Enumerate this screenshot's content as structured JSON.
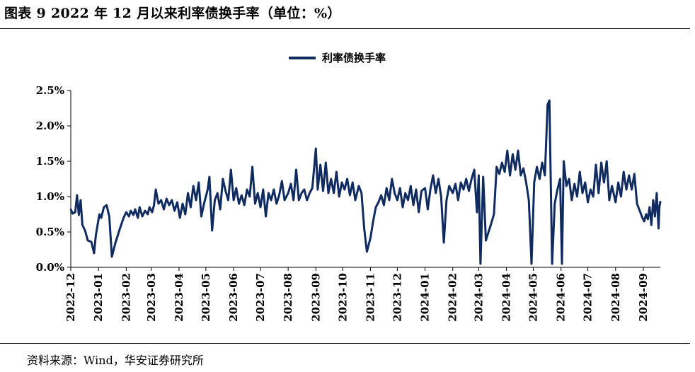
{
  "title": "图表 9 2022 年 12 月以来利率债换手率（单位：%）",
  "source": "资料来源：Wind，华安证券研究所",
  "colors": {
    "series": "#0f2b60",
    "axis": "#000000"
  },
  "chart_data": {
    "type": "line",
    "title": "",
    "xlabel": "",
    "ylabel": "",
    "ylim": [
      0,
      2.5
    ],
    "y_ticks": [
      0,
      0.5,
      1.0,
      1.5,
      2.0,
      2.5
    ],
    "y_tick_labels": [
      "0.0%",
      "0.5%",
      "1.0%",
      "1.5%",
      "2.0%",
      "2.5%"
    ],
    "x_range": [
      "2022-12-01",
      "2024-09-20"
    ],
    "x_tick_labels": [
      "2022-12",
      "2023-01",
      "2023-02",
      "2023-03",
      "2023-04",
      "2023-05",
      "2023-06",
      "2023-07",
      "2023-08",
      "2023-09",
      "2023-10",
      "2023-11",
      "2023-12",
      "2024-01",
      "2024-02",
      "2024-03",
      "2024-04",
      "2024-05",
      "2024-06",
      "2024-07",
      "2024-08",
      "2024-09"
    ],
    "legend": {
      "position": "top-center"
    },
    "grid": false,
    "series": [
      {
        "name": "利率债换手率",
        "points": [
          [
            "2022-12-01",
            0.82
          ],
          [
            "2022-12-03",
            0.76
          ],
          [
            "2022-12-06",
            0.78
          ],
          [
            "2022-12-08",
            1.02
          ],
          [
            "2022-12-10",
            0.74
          ],
          [
            "2022-12-12",
            0.95
          ],
          [
            "2022-12-14",
            0.6
          ],
          [
            "2022-12-17",
            0.52
          ],
          [
            "2022-12-20",
            0.38
          ],
          [
            "2022-12-24",
            0.36
          ],
          [
            "2022-12-27",
            0.2
          ],
          [
            "2022-12-29",
            0.45
          ],
          [
            "2023-01-02",
            0.75
          ],
          [
            "2023-01-04",
            0.7
          ],
          [
            "2023-01-07",
            0.85
          ],
          [
            "2023-01-10",
            0.88
          ],
          [
            "2023-01-13",
            0.72
          ],
          [
            "2023-01-16",
            0.15
          ],
          [
            "2023-01-20",
            0.35
          ],
          [
            "2023-01-25",
            0.55
          ],
          [
            "2023-01-29",
            0.7
          ],
          [
            "2023-02-01",
            0.78
          ],
          [
            "2023-02-04",
            0.72
          ],
          [
            "2023-02-06",
            0.8
          ],
          [
            "2023-02-09",
            0.74
          ],
          [
            "2023-02-11",
            0.82
          ],
          [
            "2023-02-14",
            0.7
          ],
          [
            "2023-02-16",
            0.85
          ],
          [
            "2023-02-19",
            0.72
          ],
          [
            "2023-02-22",
            0.8
          ],
          [
            "2023-02-25",
            0.75
          ],
          [
            "2023-02-27",
            0.85
          ],
          [
            "2023-03-02",
            0.78
          ],
          [
            "2023-03-04",
            0.88
          ],
          [
            "2023-03-06",
            1.1
          ],
          [
            "2023-03-09",
            0.9
          ],
          [
            "2023-03-12",
            0.95
          ],
          [
            "2023-03-15",
            0.82
          ],
          [
            "2023-03-18",
            0.97
          ],
          [
            "2023-03-21",
            0.88
          ],
          [
            "2023-03-24",
            0.95
          ],
          [
            "2023-03-27",
            0.8
          ],
          [
            "2023-03-30",
            0.92
          ],
          [
            "2023-04-02",
            0.7
          ],
          [
            "2023-04-05",
            0.9
          ],
          [
            "2023-04-08",
            0.75
          ],
          [
            "2023-04-11",
            1.05
          ],
          [
            "2023-04-14",
            0.85
          ],
          [
            "2023-04-17",
            1.15
          ],
          [
            "2023-04-20",
            0.95
          ],
          [
            "2023-04-23",
            1.2
          ],
          [
            "2023-04-26",
            0.72
          ],
          [
            "2023-04-29",
            0.9
          ],
          [
            "2023-05-03",
            1.1
          ],
          [
            "2023-05-05",
            1.28
          ],
          [
            "2023-05-08",
            0.52
          ],
          [
            "2023-05-11",
            0.95
          ],
          [
            "2023-05-14",
            1.05
          ],
          [
            "2023-05-17",
            0.82
          ],
          [
            "2023-05-20",
            1.25
          ],
          [
            "2023-05-23",
            1.08
          ],
          [
            "2023-05-26",
            0.95
          ],
          [
            "2023-05-29",
            1.38
          ],
          [
            "2023-06-01",
            0.95
          ],
          [
            "2023-06-04",
            1.12
          ],
          [
            "2023-06-07",
            0.9
          ],
          [
            "2023-06-10",
            1.02
          ],
          [
            "2023-06-13",
            0.88
          ],
          [
            "2023-06-16",
            1.1
          ],
          [
            "2023-06-19",
            1.0
          ],
          [
            "2023-06-22",
            1.42
          ],
          [
            "2023-06-25",
            0.9
          ],
          [
            "2023-06-28",
            1.05
          ],
          [
            "2023-07-01",
            0.85
          ],
          [
            "2023-07-04",
            1.1
          ],
          [
            "2023-07-07",
            0.72
          ],
          [
            "2023-07-10",
            1.05
          ],
          [
            "2023-07-13",
            0.95
          ],
          [
            "2023-07-16",
            1.1
          ],
          [
            "2023-07-19",
            0.9
          ],
          [
            "2023-07-22",
            1.02
          ],
          [
            "2023-07-25",
            1.22
          ],
          [
            "2023-07-28",
            0.95
          ],
          [
            "2023-08-01",
            1.05
          ],
          [
            "2023-08-04",
            1.18
          ],
          [
            "2023-08-07",
            0.95
          ],
          [
            "2023-08-10",
            1.38
          ],
          [
            "2023-08-13",
            0.95
          ],
          [
            "2023-08-16",
            1.05
          ],
          [
            "2023-08-19",
            1.1
          ],
          [
            "2023-08-22",
            0.95
          ],
          [
            "2023-08-25",
            1.05
          ],
          [
            "2023-08-28",
            1.12
          ],
          [
            "2023-09-01",
            1.68
          ],
          [
            "2023-09-03",
            1.1
          ],
          [
            "2023-09-06",
            1.45
          ],
          [
            "2023-09-09",
            1.08
          ],
          [
            "2023-09-12",
            1.48
          ],
          [
            "2023-09-15",
            1.05
          ],
          [
            "2023-09-18",
            1.25
          ],
          [
            "2023-09-21",
            1.05
          ],
          [
            "2023-09-24",
            1.35
          ],
          [
            "2023-09-27",
            1.0
          ],
          [
            "2023-09-30",
            1.2
          ],
          [
            "2023-10-03",
            1.1
          ],
          [
            "2023-10-06",
            1.25
          ],
          [
            "2023-10-09",
            1.02
          ],
          [
            "2023-10-12",
            1.2
          ],
          [
            "2023-10-15",
            0.95
          ],
          [
            "2023-10-19",
            1.15
          ],
          [
            "2023-10-22",
            1.05
          ],
          [
            "2023-10-25",
            0.55
          ],
          [
            "2023-10-28",
            0.22
          ],
          [
            "2023-11-01",
            0.42
          ],
          [
            "2023-11-04",
            0.65
          ],
          [
            "2023-11-07",
            0.85
          ],
          [
            "2023-11-10",
            0.92
          ],
          [
            "2023-11-13",
            1.02
          ],
          [
            "2023-11-16",
            0.88
          ],
          [
            "2023-11-19",
            1.12
          ],
          [
            "2023-11-22",
            0.95
          ],
          [
            "2023-11-25",
            1.25
          ],
          [
            "2023-11-28",
            1.05
          ],
          [
            "2023-12-01",
            0.95
          ],
          [
            "2023-12-04",
            1.12
          ],
          [
            "2023-12-07",
            0.85
          ],
          [
            "2023-12-10",
            1.05
          ],
          [
            "2023-12-13",
            0.95
          ],
          [
            "2023-12-16",
            1.15
          ],
          [
            "2023-12-19",
            0.88
          ],
          [
            "2023-12-22",
            1.1
          ],
          [
            "2023-12-25",
            0.78
          ],
          [
            "2023-12-28",
            1.08
          ],
          [
            "2024-01-01",
            1.12
          ],
          [
            "2024-01-04",
            0.82
          ],
          [
            "2024-01-07",
            1.1
          ],
          [
            "2024-01-10",
            1.3
          ],
          [
            "2024-01-13",
            1.05
          ],
          [
            "2024-01-16",
            1.25
          ],
          [
            "2024-01-19",
            1.0
          ],
          [
            "2024-01-22",
            0.35
          ],
          [
            "2024-01-25",
            0.95
          ],
          [
            "2024-01-28",
            1.15
          ],
          [
            "2024-02-01",
            1.05
          ],
          [
            "2024-02-04",
            1.18
          ],
          [
            "2024-02-07",
            0.95
          ],
          [
            "2024-02-10",
            1.2
          ],
          [
            "2024-02-13",
            1.1
          ],
          [
            "2024-02-16",
            1.25
          ],
          [
            "2024-02-19",
            1.08
          ],
          [
            "2024-02-22",
            1.25
          ],
          [
            "2024-02-25",
            1.38
          ],
          [
            "2024-02-28",
            0.78
          ],
          [
            "2024-03-01",
            1.3
          ],
          [
            "2024-03-03",
            0.05
          ],
          [
            "2024-03-06",
            1.28
          ],
          [
            "2024-03-09",
            0.38
          ],
          [
            "2024-03-12",
            0.5
          ],
          [
            "2024-03-15",
            0.62
          ],
          [
            "2024-03-18",
            0.75
          ],
          [
            "2024-03-21",
            1.42
          ],
          [
            "2024-03-24",
            1.32
          ],
          [
            "2024-03-27",
            1.48
          ],
          [
            "2024-03-30",
            1.35
          ],
          [
            "2024-04-02",
            1.65
          ],
          [
            "2024-04-05",
            1.3
          ],
          [
            "2024-04-08",
            1.6
          ],
          [
            "2024-04-11",
            1.38
          ],
          [
            "2024-04-14",
            1.65
          ],
          [
            "2024-04-17",
            1.3
          ],
          [
            "2024-04-20",
            1.4
          ],
          [
            "2024-04-23",
            1.2
          ],
          [
            "2024-04-26",
            0.95
          ],
          [
            "2024-04-29",
            0.05
          ],
          [
            "2024-05-02",
            1.2
          ],
          [
            "2024-05-05",
            1.42
          ],
          [
            "2024-05-08",
            1.25
          ],
          [
            "2024-05-11",
            1.48
          ],
          [
            "2024-05-14",
            1.3
          ],
          [
            "2024-05-17",
            2.3
          ],
          [
            "2024-05-19",
            2.36
          ],
          [
            "2024-05-22",
            0.05
          ],
          [
            "2024-05-25",
            0.9
          ],
          [
            "2024-05-28",
            1.1
          ],
          [
            "2024-05-31",
            1.25
          ],
          [
            "2024-06-02",
            0.05
          ],
          [
            "2024-06-04",
            1.5
          ],
          [
            "2024-06-07",
            1.15
          ],
          [
            "2024-06-10",
            1.25
          ],
          [
            "2024-06-13",
            0.95
          ],
          [
            "2024-06-16",
            1.18
          ],
          [
            "2024-06-19",
            1.0
          ],
          [
            "2024-06-22",
            1.35
          ],
          [
            "2024-06-25",
            1.05
          ],
          [
            "2024-06-28",
            1.2
          ],
          [
            "2024-07-01",
            0.92
          ],
          [
            "2024-07-04",
            1.1
          ],
          [
            "2024-07-07",
            1.0
          ],
          [
            "2024-07-10",
            1.45
          ],
          [
            "2024-07-13",
            1.05
          ],
          [
            "2024-07-16",
            1.48
          ],
          [
            "2024-07-19",
            1.2
          ],
          [
            "2024-07-22",
            1.5
          ],
          [
            "2024-07-25",
            0.95
          ],
          [
            "2024-07-28",
            1.15
          ],
          [
            "2024-08-01",
            0.92
          ],
          [
            "2024-08-04",
            1.2
          ],
          [
            "2024-08-07",
            1.0
          ],
          [
            "2024-08-10",
            1.35
          ],
          [
            "2024-08-13",
            1.1
          ],
          [
            "2024-08-16",
            1.3
          ],
          [
            "2024-08-19",
            1.1
          ],
          [
            "2024-08-22",
            1.32
          ],
          [
            "2024-08-25",
            0.9
          ],
          [
            "2024-08-28",
            0.8
          ],
          [
            "2024-08-31",
            0.7
          ],
          [
            "2024-09-02",
            0.65
          ],
          [
            "2024-09-04",
            0.75
          ],
          [
            "2024-09-06",
            0.68
          ],
          [
            "2024-09-08",
            0.85
          ],
          [
            "2024-09-10",
            0.6
          ],
          [
            "2024-09-12",
            0.95
          ],
          [
            "2024-09-14",
            0.72
          ],
          [
            "2024-09-16",
            1.05
          ],
          [
            "2024-09-18",
            0.55
          ],
          [
            "2024-09-19",
            0.85
          ],
          [
            "2024-09-20",
            0.93
          ]
        ]
      }
    ]
  }
}
